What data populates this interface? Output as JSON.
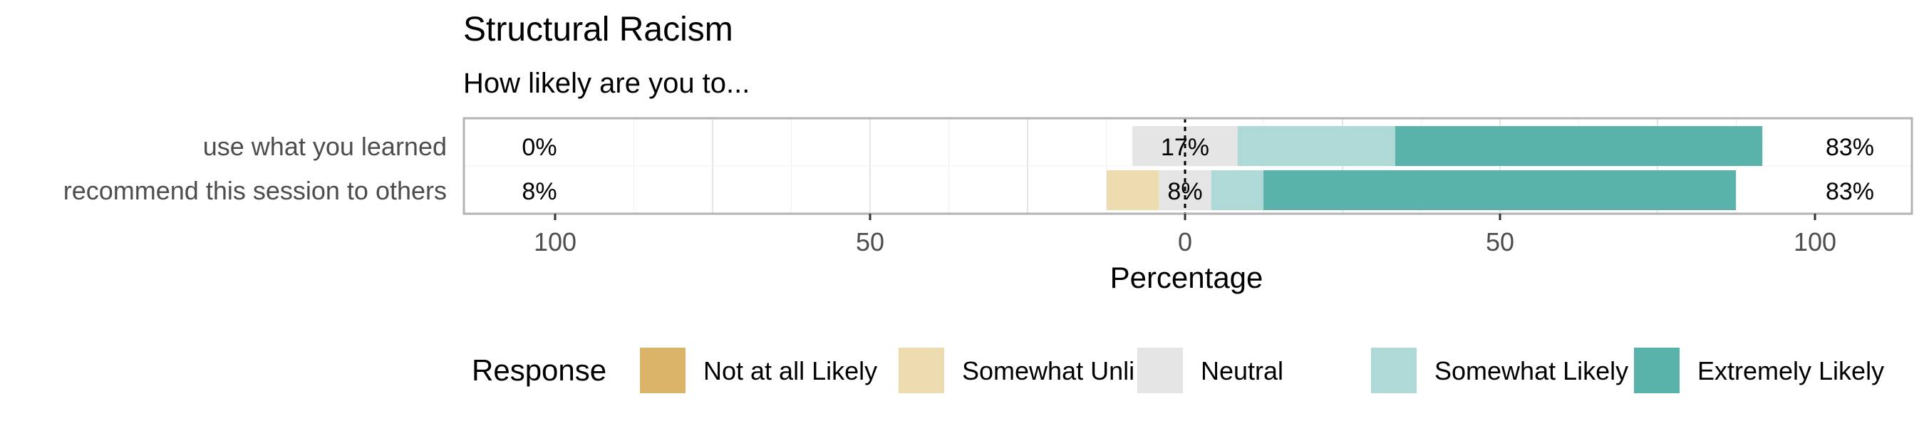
{
  "chart_data": {
    "type": "bar",
    "orientation": "horizontal",
    "stacking": "diverging-likert",
    "title": "Structural Racism",
    "subtitle": "How likely are you to...",
    "xlabel": "Percentage",
    "xlim": [
      -100,
      100
    ],
    "xticks": [
      -100,
      -50,
      0,
      50,
      100
    ],
    "xtick_labels": [
      "100",
      "50",
      "0",
      "50",
      "100"
    ],
    "grid": true,
    "legend": {
      "title": "Response",
      "position": "bottom"
    },
    "categories": [
      "use what you learned",
      "recommend this session to others"
    ],
    "series": [
      {
        "name": "Not at all Likely",
        "color": "#DBB46A",
        "values": [
          0,
          0
        ]
      },
      {
        "name": "Somewhat Unlikely",
        "color": "#EEDCB1",
        "values": [
          0,
          8.3
        ]
      },
      {
        "name": "Neutral",
        "color": "#E5E5E5",
        "values": [
          16.7,
          8.3
        ]
      },
      {
        "name": "Somewhat Likely",
        "color": "#AED9D6",
        "values": [
          25,
          8.3
        ]
      },
      {
        "name": "Extremely Likely",
        "color": "#5AB3AA",
        "values": [
          58.3,
          75
        ]
      }
    ],
    "data_labels": {
      "left": [
        "0%",
        "8%"
      ],
      "center": [
        "17%",
        "8%"
      ],
      "right": [
        "83%",
        "83%"
      ]
    }
  }
}
